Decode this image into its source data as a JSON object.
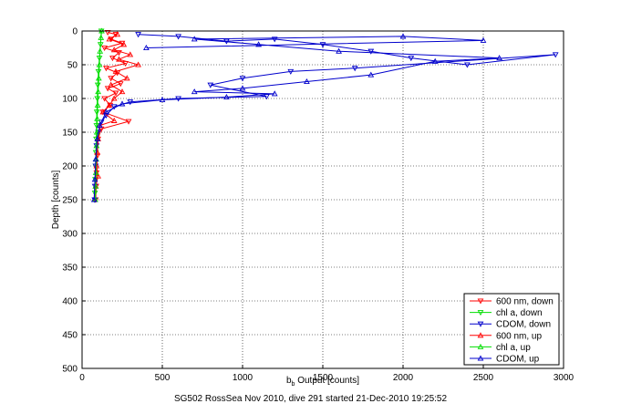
{
  "caption": "SG502 RossSea Nov 2010, dive 291 started 21-Dec-2010 19:25:52",
  "chart_data": {
    "type": "scatter",
    "xlabel_main": "b",
    "xlabel_sub": "b",
    "xlabel_rest": " Output [counts]",
    "ylabel": "Depth [counts]",
    "xlim": [
      0,
      3000
    ],
    "ylim": [
      0,
      500
    ],
    "y_reversed": true,
    "grid": true,
    "x_ticks": [
      "0",
      "500",
      "1000",
      "1500",
      "2000",
      "2500",
      "3000"
    ],
    "y_ticks": [
      "0",
      "50",
      "100",
      "150",
      "200",
      "250",
      "300",
      "350",
      "400",
      "450",
      "500"
    ],
    "legend_position": "bottom-right",
    "series": [
      {
        "name": "600 nm, down",
        "color": "#ff0000",
        "marker": "triangle-down",
        "points": [
          [
            160,
            2
          ],
          [
            210,
            5
          ],
          [
            180,
            12
          ],
          [
            250,
            18
          ],
          [
            140,
            25
          ],
          [
            230,
            32
          ],
          [
            190,
            40
          ],
          [
            270,
            48
          ],
          [
            150,
            55
          ],
          [
            220,
            62
          ],
          [
            180,
            70
          ],
          [
            240,
            78
          ],
          [
            160,
            85
          ],
          [
            210,
            92
          ],
          [
            140,
            100
          ],
          [
            175,
            110
          ],
          [
            130,
            120
          ],
          [
            290,
            134
          ],
          [
            120,
            145
          ],
          [
            100,
            160
          ],
          [
            95,
            185
          ],
          [
            90,
            210
          ],
          [
            88,
            230
          ],
          [
            85,
            250
          ]
        ]
      },
      {
        "name": "chl a, down",
        "color": "#00dd00",
        "marker": "triangle-down",
        "points": [
          [
            120,
            0
          ],
          [
            115,
            20
          ],
          [
            108,
            40
          ],
          [
            102,
            60
          ],
          [
            98,
            80
          ],
          [
            95,
            100
          ],
          [
            92,
            120
          ],
          [
            90,
            140
          ],
          [
            88,
            160
          ],
          [
            86,
            180
          ],
          [
            84,
            200
          ],
          [
            82,
            220
          ],
          [
            80,
            240
          ],
          [
            80,
            250
          ]
        ]
      },
      {
        "name": "CDOM, down",
        "color": "#0000cc",
        "marker": "triangle-down",
        "points": [
          [
            350,
            5
          ],
          [
            600,
            8
          ],
          [
            900,
            15
          ],
          [
            1200,
            12
          ],
          [
            1500,
            20
          ],
          [
            1800,
            30
          ],
          [
            2050,
            40
          ],
          [
            2400,
            50
          ],
          [
            2950,
            35
          ],
          [
            1700,
            55
          ],
          [
            1300,
            60
          ],
          [
            1000,
            70
          ],
          [
            800,
            80
          ],
          [
            1150,
            97
          ],
          [
            600,
            100
          ],
          [
            300,
            105
          ],
          [
            200,
            112
          ],
          [
            150,
            125
          ],
          [
            120,
            135
          ],
          [
            100,
            150
          ],
          [
            90,
            170
          ],
          [
            85,
            200
          ],
          [
            80,
            230
          ],
          [
            78,
            250
          ]
        ]
      },
      {
        "name": "600 nm, up",
        "color": "#ff0000",
        "marker": "triangle-up",
        "points": [
          [
            80,
            250
          ],
          [
            85,
            230
          ],
          [
            100,
            215
          ],
          [
            90,
            200
          ],
          [
            95,
            180
          ],
          [
            100,
            160
          ],
          [
            110,
            140
          ],
          [
            200,
            133
          ],
          [
            130,
            120
          ],
          [
            170,
            110
          ],
          [
            200,
            100
          ],
          [
            250,
            90
          ],
          [
            180,
            80
          ],
          [
            280,
            70
          ],
          [
            210,
            60
          ],
          [
            350,
            50
          ],
          [
            230,
            42
          ],
          [
            300,
            35
          ],
          [
            200,
            28
          ],
          [
            260,
            20
          ],
          [
            170,
            12
          ],
          [
            220,
            5
          ]
        ]
      },
      {
        "name": "chl a, up",
        "color": "#00dd00",
        "marker": "triangle-up",
        "points": [
          [
            82,
            250
          ],
          [
            84,
            230
          ],
          [
            86,
            210
          ],
          [
            88,
            190
          ],
          [
            90,
            170
          ],
          [
            92,
            150
          ],
          [
            94,
            130
          ],
          [
            97,
            110
          ],
          [
            100,
            90
          ],
          [
            104,
            70
          ],
          [
            108,
            50
          ],
          [
            112,
            30
          ],
          [
            118,
            10
          ],
          [
            122,
            0
          ]
        ]
      },
      {
        "name": "CDOM, up",
        "color": "#0000cc",
        "marker": "triangle-up",
        "points": [
          [
            75,
            250
          ],
          [
            80,
            220
          ],
          [
            85,
            190
          ],
          [
            95,
            160
          ],
          [
            110,
            140
          ],
          [
            150,
            120
          ],
          [
            250,
            108
          ],
          [
            500,
            102
          ],
          [
            900,
            98
          ],
          [
            1200,
            93
          ],
          [
            700,
            90
          ],
          [
            1000,
            85
          ],
          [
            1400,
            75
          ],
          [
            1800,
            65
          ],
          [
            2200,
            45
          ],
          [
            2600,
            40
          ],
          [
            1600,
            30
          ],
          [
            1100,
            20
          ],
          [
            700,
            12
          ],
          [
            2000,
            8
          ],
          [
            2500,
            14
          ],
          [
            400,
            25
          ]
        ]
      }
    ]
  }
}
